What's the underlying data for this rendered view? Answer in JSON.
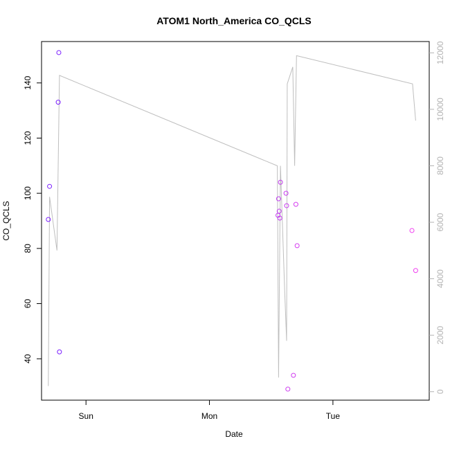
{
  "chart_data": {
    "type": "scatter",
    "title": "ATOM1 North_America CO_QCLS",
    "xlabel": "Date",
    "ylabel": "CO_QCLS",
    "x_ticks": [
      "Sun",
      "Mon",
      "Tue"
    ],
    "x_tick_positions": [
      1.0,
      2.0,
      3.0
    ],
    "xlim": [
      0.64,
      3.78
    ],
    "ylim": [
      25,
      155
    ],
    "y_ticks": [
      40,
      60,
      80,
      100,
      120,
      140
    ],
    "y2lim": [
      -300,
      12400
    ],
    "y2_ticks": [
      0,
      2000,
      4000,
      6000,
      8000,
      10000,
      12000
    ],
    "grid": false,
    "series": [
      {
        "kind": "points",
        "color_map": "purple-to-magenta",
        "points": [
          {
            "x": 0.695,
            "y": 90.5,
            "color": "#7a1cff"
          },
          {
            "x": 0.705,
            "y": 102.5,
            "color": "#7a1cff"
          },
          {
            "x": 0.775,
            "y": 133,
            "color": "#7a1cff"
          },
          {
            "x": 0.78,
            "y": 151,
            "color": "#7a1cff"
          },
          {
            "x": 0.785,
            "y": 42.5,
            "color": "#7a1cff"
          },
          {
            "x": 2.555,
            "y": 92,
            "color": "#c13cf0"
          },
          {
            "x": 2.56,
            "y": 98,
            "color": "#c13cf0"
          },
          {
            "x": 2.565,
            "y": 93.5,
            "color": "#c13cf0"
          },
          {
            "x": 2.57,
            "y": 91,
            "color": "#c43cf0"
          },
          {
            "x": 2.575,
            "y": 104,
            "color": "#c43cf0"
          },
          {
            "x": 2.62,
            "y": 100,
            "color": "#c83cf0"
          },
          {
            "x": 2.625,
            "y": 95.5,
            "color": "#c83cf0"
          },
          {
            "x": 2.635,
            "y": 29,
            "color": "#cc3cf0"
          },
          {
            "x": 2.68,
            "y": 34,
            "color": "#d03cf0"
          },
          {
            "x": 2.7,
            "y": 96,
            "color": "#d43cf0"
          },
          {
            "x": 2.71,
            "y": 81,
            "color": "#d43cf0"
          },
          {
            "x": 3.64,
            "y": 86.5,
            "color": "#f03cf0"
          },
          {
            "x": 3.67,
            "y": 72,
            "color": "#f03cf0"
          }
        ]
      },
      {
        "kind": "line",
        "axis": "right",
        "color": "#bebebe",
        "x": [
          0.695,
          0.705,
          0.765,
          0.785,
          2.55,
          2.56,
          2.575,
          2.61,
          2.625,
          2.63,
          2.675,
          2.69,
          2.705,
          3.645,
          3.67
        ],
        "y": [
          200,
          6900,
          5000,
          11200,
          8000,
          500,
          8000,
          3500,
          1800,
          10900,
          11500,
          8000,
          11900,
          10900,
          9600
        ]
      }
    ]
  }
}
